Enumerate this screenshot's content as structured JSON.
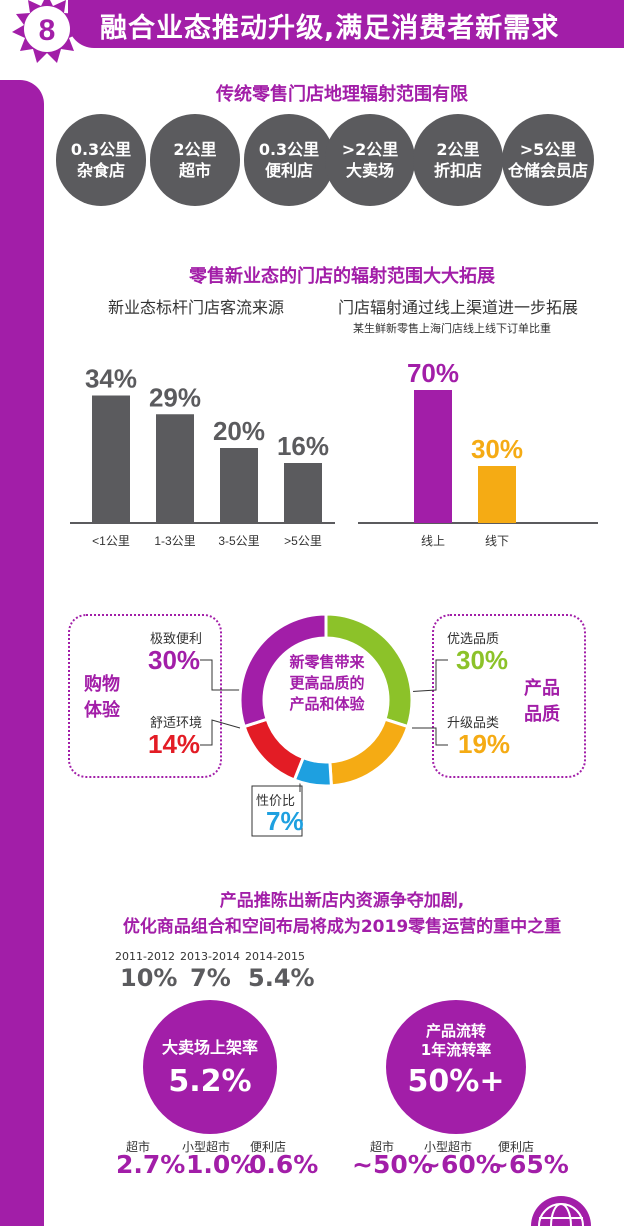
{
  "header": {
    "number": "8",
    "title": "融合业态推动升级,满足消费者新需求"
  },
  "section1": {
    "title": "传统零售门店地理辐射范围有限",
    "pills": [
      {
        "line1": "0.3公里",
        "line2": "杂食店"
      },
      {
        "line1": "2公里",
        "line2": "超市"
      },
      {
        "line1": "0.3公里",
        "line2": "便利店"
      },
      {
        "line1": ">2公里",
        "line2": "大卖场"
      },
      {
        "line1": "2公里",
        "line2": "折扣店"
      },
      {
        "line1": ">5公里",
        "line2": "仓储会员店"
      }
    ]
  },
  "section2": {
    "title": "零售新业态的门店的辐射范围大大拓展"
  },
  "chart_data": [
    {
      "type": "bar",
      "title": "新业态标杆门店客流来源",
      "categories": [
        "<1公里",
        "1-3公里",
        "3-5公里",
        ">5公里"
      ],
      "values": [
        34,
        29,
        20,
        16
      ],
      "value_labels": [
        "34%",
        "29%",
        "20%",
        "16%"
      ],
      "ylim": [
        0,
        40
      ],
      "colors": [
        "#5b5b5e"
      ]
    },
    {
      "type": "bar",
      "title": "门店辐射通过线上渠道进一步拓展",
      "subtitle": "某生鲜新零售上海门店线上线下订单比重",
      "categories": [
        "线上",
        "线下"
      ],
      "values": [
        70,
        30
      ],
      "value_labels": [
        "70%",
        "30%"
      ],
      "ylim": [
        0,
        100
      ],
      "colors": [
        "#a21ea8",
        "#f5ab14"
      ]
    },
    {
      "type": "pie",
      "title": "新零售带来更高品质的产品和体验",
      "slices": [
        {
          "label": "优选品质",
          "value": 30,
          "value_label": "30%",
          "color": "#8cc229"
        },
        {
          "label": "升级品类",
          "value": 19,
          "value_label": "19%",
          "color": "#f5ab14"
        },
        {
          "label": "性价比",
          "value": 7,
          "value_label": "7%",
          "color": "#1ea0e0"
        },
        {
          "label": "舒适环境",
          "value": 14,
          "value_label": "14%",
          "color": "#e31c25"
        },
        {
          "label": "极致便利",
          "value": 30,
          "value_label": "30%",
          "color": "#a21ea8"
        }
      ]
    }
  ],
  "experience": {
    "group_left": {
      "line1": "购物",
      "line2": "体验"
    },
    "group_right": {
      "line1": "产品",
      "line2": "品质"
    },
    "center_text": [
      "新零售带来",
      "更高品质的",
      "产品和体验"
    ]
  },
  "section3": {
    "title_line1": "产品推陈出新店内资源争夺加剧,",
    "title_line2": "优化商品组合和空间布局将成为2019零售运营的重中之重",
    "years": [
      {
        "label": "2011-2012",
        "value": "10%"
      },
      {
        "label": "2013-2014",
        "value": "7%"
      },
      {
        "label": "2014-2015",
        "value": "5.4%"
      }
    ],
    "left_circle": {
      "title": "大卖场上架率",
      "value": "5.2%"
    },
    "right_circle": {
      "title_line1": "产品流转",
      "title_line2": "1年流转率",
      "value": "50%+"
    },
    "left_stores": [
      {
        "label": "超市",
        "value": "2.7%"
      },
      {
        "label": "小型超市",
        "value": "1.0%"
      },
      {
        "label": "便利店",
        "value": "0.6%"
      }
    ],
    "right_stores": [
      {
        "label": "超市",
        "value": "~50%"
      },
      {
        "label": "小型超市",
        "value": "~60%"
      },
      {
        "label": "便利店",
        "value": "~65%"
      }
    ]
  }
}
